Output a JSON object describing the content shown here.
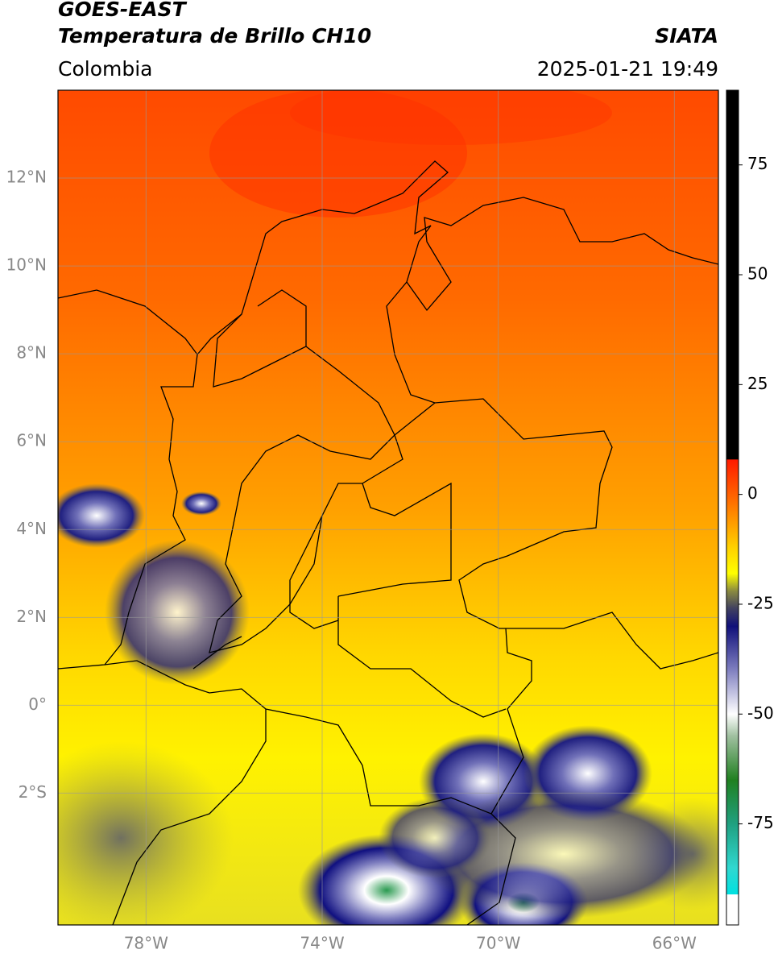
{
  "chart_data": {
    "type": "map",
    "title": "GOES-EAST",
    "subtitle": "Temperatura de Brillo CH10",
    "source": "SIATA",
    "region": "Colombia",
    "datetime": "2025-01-21 19:49",
    "xlim": [
      -80,
      -65
    ],
    "ylim": [
      -5,
      14
    ],
    "xticks": [
      {
        "value": -78,
        "label": "78°W"
      },
      {
        "value": -74,
        "label": "74°W"
      },
      {
        "value": -70,
        "label": "70°W"
      },
      {
        "value": -66,
        "label": "66°W"
      }
    ],
    "yticks": [
      {
        "value": 12,
        "label": "12°N"
      },
      {
        "value": 10,
        "label": "10°N"
      },
      {
        "value": 8,
        "label": "8°N"
      },
      {
        "value": 6,
        "label": "6°N"
      },
      {
        "value": 4,
        "label": "4°N"
      },
      {
        "value": 2,
        "label": "2°N"
      },
      {
        "value": 0,
        "label": "0°"
      },
      {
        "value": -2,
        "label": "2°S"
      }
    ],
    "grid": true,
    "colorbar": {
      "clim": [
        -98,
        92
      ],
      "ticks": [
        75,
        50,
        25,
        0,
        -25,
        -50,
        -75
      ],
      "stops": [
        {
          "value": 92,
          "color": "#000000"
        },
        {
          "value": 8,
          "color": "#000000"
        },
        {
          "value": 7.9,
          "color": "#ff1a00"
        },
        {
          "value": 0,
          "color": "#ff6000"
        },
        {
          "value": -12,
          "color": "#ffd000"
        },
        {
          "value": -18,
          "color": "#ffff00"
        },
        {
          "value": -22,
          "color": "#8a8a40"
        },
        {
          "value": -26,
          "color": "#404060"
        },
        {
          "value": -30,
          "color": "#10107a"
        },
        {
          "value": -40,
          "color": "#8080c0"
        },
        {
          "value": -50,
          "color": "#ffffff"
        },
        {
          "value": -55,
          "color": "#a0c0a0"
        },
        {
          "value": -65,
          "color": "#208020"
        },
        {
          "value": -75,
          "color": "#20a080"
        },
        {
          "value": -85,
          "color": "#30d8d0"
        },
        {
          "value": -91,
          "color": "#00e0e0"
        },
        {
          "value": -91.1,
          "color": "#ffffff"
        },
        {
          "value": -98,
          "color": "#ffffff"
        }
      ]
    }
  }
}
